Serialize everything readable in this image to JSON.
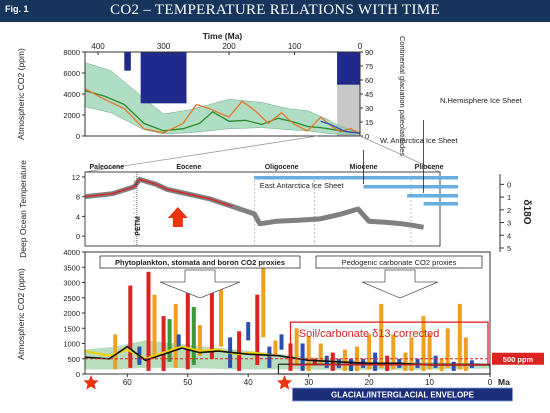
{
  "slide": {
    "fig_label": "Fig. 1",
    "title": "CO2 – TEMPERATURE RELATIONS WITH TIME"
  },
  "chart_data": [
    {
      "type": "line",
      "panel": "top",
      "xlabel": "Time (Ma)",
      "x_ticks": [
        "400",
        "300",
        "200",
        "100",
        "0"
      ],
      "xlim": [
        420,
        0
      ],
      "ylabel": "Atmospheric CO2 (ppm)",
      "y_ticks": [
        "8000",
        "6000",
        "4000",
        "2000",
        "0"
      ],
      "ylim": [
        0,
        8000
      ],
      "y2label": "Continental glaciation paleolatitudes",
      "y2_ticks": [
        "90",
        "75",
        "60",
        "45",
        "30",
        "15",
        "0"
      ],
      "y2lim": [
        0,
        90
      ],
      "series": [
        {
          "style": "envelope",
          "color": "#8fd0ad",
          "x": [
            420,
            380,
            330,
            300,
            260,
            200,
            150,
            110,
            80,
            50,
            30,
            10,
            0
          ],
          "upper": [
            7000,
            6200,
            3600,
            2100,
            2500,
            3500,
            3200,
            2600,
            2400,
            1600,
            900,
            500,
            300
          ],
          "lower": [
            2800,
            2200,
            600,
            200,
            300,
            700,
            800,
            600,
            500,
            250,
            150,
            150,
            200
          ]
        },
        {
          "style": "line",
          "color": "#2a8a2a",
          "x": [
            420,
            390,
            360,
            330,
            300,
            270,
            245,
            225,
            200,
            175,
            150,
            125,
            100,
            80,
            60,
            40,
            20,
            0
          ],
          "y": [
            4300,
            3800,
            3000,
            1200,
            500,
            700,
            1200,
            2300,
            1400,
            1500,
            1100,
            1700,
            1300,
            900,
            800,
            600,
            400,
            300
          ]
        },
        {
          "style": "line",
          "color": "#e8762b",
          "x": [
            420,
            390,
            360,
            330,
            300,
            270,
            250,
            230,
            200,
            180,
            160,
            140,
            120,
            100,
            80,
            60,
            45,
            30,
            15,
            0
          ],
          "y": [
            4500,
            3500,
            2600,
            700,
            300,
            1200,
            3000,
            2600,
            1800,
            3300,
            2400,
            1200,
            2200,
            1100,
            500,
            1800,
            1000,
            400,
            700,
            280
          ]
        },
        {
          "style": "line",
          "color": "#3355bb",
          "x": [
            60,
            45,
            35,
            25,
            15,
            5,
            0
          ],
          "y": [
            1400,
            1100,
            800,
            500,
            350,
            300,
            280
          ]
        }
      ],
      "glaciation_bars": [
        {
          "x_from": 360,
          "x_to": 350,
          "from_lat": 70,
          "to_lat": 90
        },
        {
          "x_from": 335,
          "x_to": 265,
          "from_lat": 35,
          "to_lat": 90
        },
        {
          "x_from": 35,
          "x_to": 0,
          "from_lat": 55,
          "to_lat": 90
        }
      ],
      "shaded_x_range": [
        35,
        0
      ]
    },
    {
      "type": "scatter",
      "panel": "middle",
      "xlim": [
        65,
        0
      ],
      "ylabel": "Deep Ocean Temperature",
      "y_ticks": [
        "12",
        "8",
        "4",
        "0"
      ],
      "ylim": [
        -2,
        13
      ],
      "y2label": "δ18O",
      "y2_ticks": [
        "0",
        "1",
        "2",
        "3",
        "4",
        "5"
      ],
      "y2lim": [
        -0.5,
        5
      ],
      "epochs": [
        "Paleocene",
        "Eocene",
        "Oligocene",
        "Miocene",
        "Pliocene"
      ],
      "annotations": [
        "N.Hemisphere Ice Sheet",
        "W. Antarctica Ice Sheet",
        "East Antarctica Ice Sheet",
        "PETM"
      ],
      "series": [
        {
          "style": "band",
          "color": "#666666",
          "x": [
            65,
            60,
            56,
            55,
            52,
            50,
            46,
            42,
            38,
            34,
            33,
            30,
            26,
            22,
            18,
            15,
            13,
            10,
            7,
            5,
            3
          ],
          "y": [
            8,
            8.6,
            10,
            11.5,
            10.5,
            9.5,
            8.5,
            7.5,
            6,
            4.5,
            2.5,
            3,
            3.2,
            3.5,
            4.5,
            5.5,
            3,
            2.8,
            2.5,
            2.2,
            1.8
          ]
        }
      ]
    },
    {
      "type": "bar",
      "panel": "bottom",
      "xlabel": "Ma",
      "x_ticks": [
        "60",
        "50",
        "40",
        "30",
        "20",
        "10",
        "0"
      ],
      "xlim": [
        67,
        0
      ],
      "ylabel": "Atmospheric CO2 (ppm)",
      "y_ticks": [
        "4000",
        "3500",
        "3000",
        "2500",
        "2000",
        "1500",
        "1000",
        "500",
        "0"
      ],
      "ylim": [
        0,
        4000
      ],
      "labels": [
        "Phytoplankton, stomata and boron CO2 proxies",
        "Pedogenic carbonate CO2 proxies",
        "Soil/carbonate δ13 corrected",
        "500 ppm",
        "GLACIAL/INTERGLACIAL ENVELOPE"
      ],
      "colors": {
        "red": "#dd2222",
        "orange": "#f0a020",
        "blue": "#2a4fb0",
        "green": "#3a9a3a",
        "gray": "#909090"
      },
      "ranges": [
        {
          "x": 62,
          "low": 150,
          "high": 1300,
          "c": "orange"
        },
        {
          "x": 59.5,
          "low": 200,
          "high": 2900,
          "c": "red"
        },
        {
          "x": 58,
          "low": 300,
          "high": 900,
          "c": "blue"
        },
        {
          "x": 56.5,
          "low": 100,
          "high": 3350,
          "c": "red"
        },
        {
          "x": 55.5,
          "low": 500,
          "high": 2600,
          "c": "orange"
        },
        {
          "x": 54,
          "low": 100,
          "high": 1900,
          "c": "red"
        },
        {
          "x": 53,
          "low": 400,
          "high": 1800,
          "c": "green"
        },
        {
          "x": 52,
          "low": 200,
          "high": 2300,
          "c": "orange"
        },
        {
          "x": 51.5,
          "low": 800,
          "high": 1300,
          "c": "blue"
        },
        {
          "x": 50,
          "low": 150,
          "high": 2700,
          "c": "red"
        },
        {
          "x": 49,
          "low": 300,
          "high": 2200,
          "c": "green"
        },
        {
          "x": 48,
          "low": 600,
          "high": 1600,
          "c": "orange"
        },
        {
          "x": 46,
          "low": 500,
          "high": 3100,
          "c": "red"
        },
        {
          "x": 44.5,
          "low": 900,
          "high": 2900,
          "c": "orange"
        },
        {
          "x": 43,
          "low": 200,
          "high": 1200,
          "c": "blue"
        },
        {
          "x": 41.5,
          "low": 100,
          "high": 1400,
          "c": "red"
        },
        {
          "x": 40,
          "low": 1100,
          "high": 1700,
          "c": "blue"
        },
        {
          "x": 38.5,
          "low": 300,
          "high": 2600,
          "c": "red"
        },
        {
          "x": 37.5,
          "low": 1200,
          "high": 3700,
          "c": "orange"
        },
        {
          "x": 36.5,
          "low": 200,
          "high": 900,
          "c": "blue"
        },
        {
          "x": 35.5,
          "low": 600,
          "high": 1100,
          "c": "orange"
        },
        {
          "x": 34.5,
          "low": 800,
          "high": 1300,
          "c": "blue"
        },
        {
          "x": 33,
          "low": 100,
          "high": 1000,
          "c": "red"
        },
        {
          "x": 32,
          "low": 300,
          "high": 1500,
          "c": "orange"
        },
        {
          "x": 31,
          "low": 100,
          "high": 1000,
          "c": "blue"
        },
        {
          "x": 30,
          "low": 100,
          "high": 1250,
          "c": "orange"
        },
        {
          "x": 29,
          "low": 300,
          "high": 500,
          "c": "red"
        },
        {
          "x": 28,
          "low": 300,
          "high": 1000,
          "c": "orange"
        },
        {
          "x": 27,
          "low": 200,
          "high": 600,
          "c": "blue"
        },
        {
          "x": 26,
          "low": 100,
          "high": 700,
          "c": "red"
        },
        {
          "x": 25,
          "low": 200,
          "high": 500,
          "c": "blue"
        },
        {
          "x": 24,
          "low": 100,
          "high": 800,
          "c": "orange"
        },
        {
          "x": 23,
          "low": 100,
          "high": 500,
          "c": "blue"
        },
        {
          "x": 22,
          "low": 100,
          "high": 900,
          "c": "orange"
        },
        {
          "x": 21,
          "low": 200,
          "high": 500,
          "c": "blue"
        },
        {
          "x": 20,
          "low": 150,
          "high": 1300,
          "c": "orange"
        },
        {
          "x": 19,
          "low": 100,
          "high": 700,
          "c": "blue"
        },
        {
          "x": 18,
          "low": 200,
          "high": 2300,
          "c": "orange"
        },
        {
          "x": 17,
          "low": 100,
          "high": 600,
          "c": "red"
        },
        {
          "x": 16,
          "low": 150,
          "high": 1300,
          "c": "orange"
        },
        {
          "x": 15,
          "low": 200,
          "high": 500,
          "c": "blue"
        },
        {
          "x": 14,
          "low": 100,
          "high": 700,
          "c": "orange"
        },
        {
          "x": 13,
          "low": 100,
          "high": 1200,
          "c": "orange"
        },
        {
          "x": 12,
          "low": 200,
          "high": 500,
          "c": "blue"
        },
        {
          "x": 11,
          "low": 100,
          "high": 1900,
          "c": "orange"
        },
        {
          "x": 10,
          "low": 150,
          "high": 1300,
          "c": "orange"
        },
        {
          "x": 9,
          "low": 200,
          "high": 600,
          "c": "blue"
        },
        {
          "x": 8,
          "low": 100,
          "high": 500,
          "c": "orange"
        },
        {
          "x": 7,
          "low": 200,
          "high": 1500,
          "c": "orange"
        },
        {
          "x": 6,
          "low": 100,
          "high": 400,
          "c": "blue"
        },
        {
          "x": 5,
          "low": 150,
          "high": 2300,
          "c": "orange"
        },
        {
          "x": 4,
          "low": 100,
          "high": 1200,
          "c": "orange"
        },
        {
          "x": 3,
          "low": 200,
          "high": 450,
          "c": "blue"
        }
      ],
      "envelope": {
        "x": [
          67,
          62,
          57,
          52,
          47,
          42,
          37,
          32,
          27,
          22,
          17,
          12,
          7,
          2,
          0
        ],
        "upper": [
          800,
          900,
          1100,
          1000,
          900,
          800,
          700,
          600,
          500,
          450,
          400,
          400,
          380,
          350,
          300
        ],
        "lower": [
          150,
          150,
          200,
          200,
          180,
          150,
          150,
          150,
          140,
          140,
          140,
          140,
          150,
          170,
          180
        ]
      },
      "trend_black": {
        "x": [
          67,
          63,
          60,
          57,
          54,
          51,
          48,
          45,
          40,
          35,
          30,
          25,
          20,
          15,
          10,
          5,
          0
        ],
        "y": [
          550,
          500,
          900,
          450,
          650,
          850,
          700,
          750,
          650,
          600,
          450,
          400,
          350,
          350,
          300,
          300,
          300
        ]
      },
      "trend_yellow": {
        "x": [
          67,
          63,
          60,
          57,
          54,
          51,
          48,
          45,
          42,
          39,
          36
        ],
        "y": [
          750,
          600,
          800,
          500,
          700,
          900,
          750,
          800,
          650,
          700,
          600
        ]
      },
      "reference_line_ppm": 500
    }
  ]
}
